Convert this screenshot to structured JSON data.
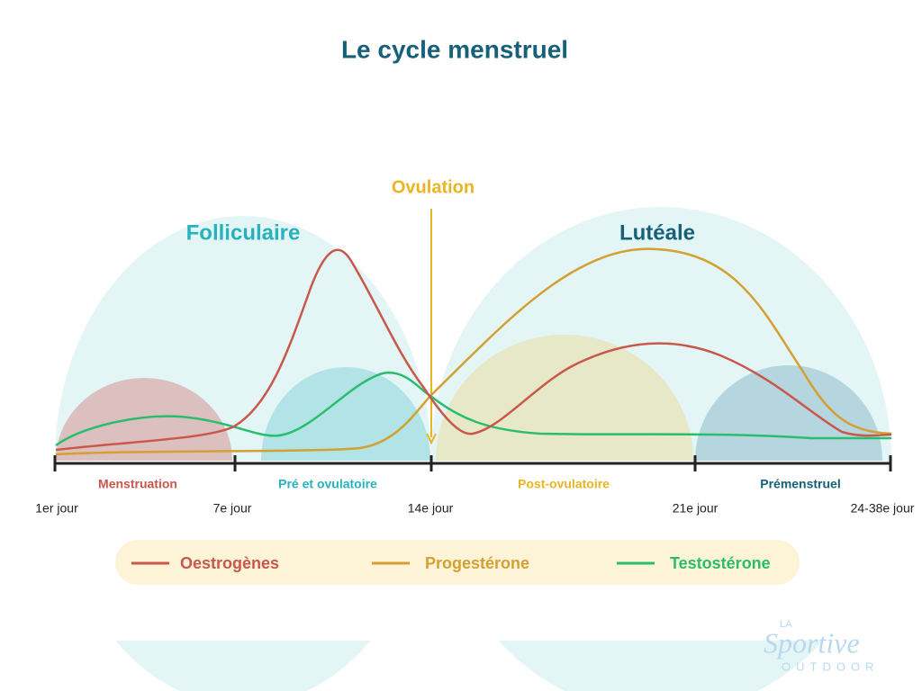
{
  "title": "Le cycle menstruel",
  "phases": [
    "Folliculaire",
    "Lutéale"
  ],
  "ovulation": "Ovulation",
  "subphases": [
    "Menstruation",
    "Pré et  ovulatoire",
    "Post-ovulatoire",
    "Prémenstruel"
  ],
  "days": [
    "1er jour",
    "7e jour",
    "14e jour",
    "21e jour",
    "24-38e jour"
  ],
  "legend": [
    "Oestrogènes",
    "Progestérone",
    "Testostérone"
  ],
  "logo": {
    "top": "LA",
    "middle": "Sportive",
    "bottom": "OUTDOOR"
  }
}
